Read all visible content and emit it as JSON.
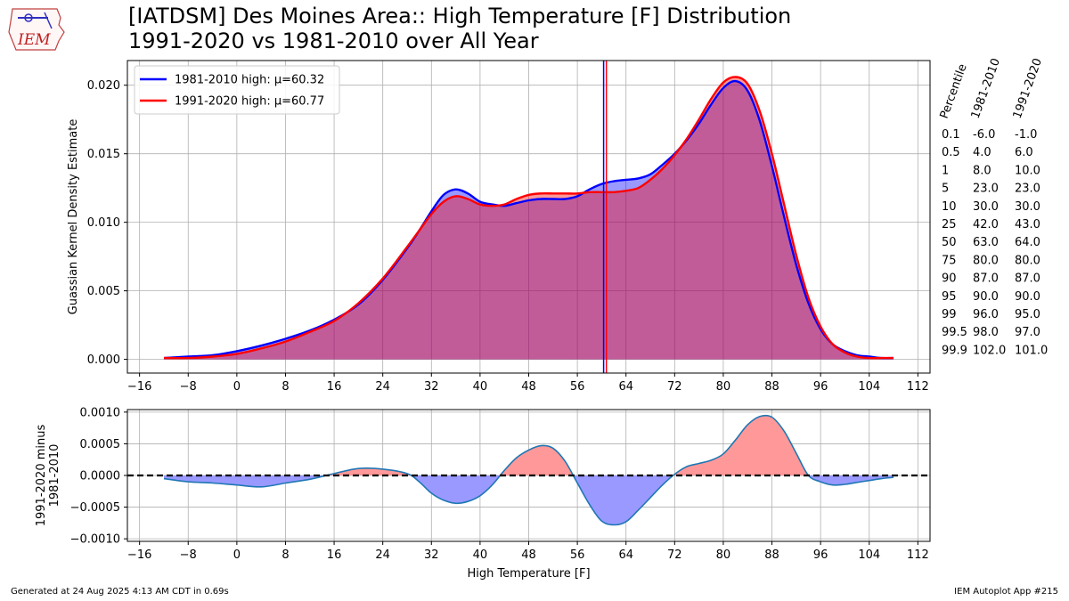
{
  "title": {
    "line1": "[IATDSM] Des Moines Area:: High Temperature [F] Distribution",
    "line2": "1991-2020 vs 1981-2010 over All Year"
  },
  "logo": {
    "text": "IEM",
    "icon": "iowa-state-outline-logo"
  },
  "footer": {
    "left": "Generated at 24 Aug 2025 4:13 AM CDT in 0.69s",
    "right": "IEM Autoplot App #215"
  },
  "chart_data": [
    {
      "type": "area",
      "xlabel": "",
      "ylabel": "Guassian Kernel Density Estimate",
      "xlim": [
        -18,
        114
      ],
      "ylim": [
        -0.001,
        0.0218
      ],
      "xticks": [
        -16,
        -8,
        0,
        8,
        16,
        24,
        32,
        40,
        48,
        56,
        64,
        72,
        80,
        88,
        96,
        104,
        112
      ],
      "yticks": [
        0.0,
        0.005,
        0.01,
        0.015,
        0.02
      ],
      "ytick_labels": [
        "0.000",
        "0.005",
        "0.010",
        "0.015",
        "0.020"
      ],
      "grid": true,
      "legend": "upper-left",
      "x": [
        -12,
        -8,
        -4,
        0,
        4,
        8,
        12,
        16,
        20,
        24,
        28,
        30,
        32,
        34,
        36,
        38,
        40,
        42,
        44,
        46,
        48,
        50,
        52,
        54,
        56,
        58,
        60,
        62,
        64,
        66,
        68,
        70,
        72,
        74,
        76,
        78,
        80,
        82,
        84,
        86,
        88,
        90,
        92,
        94,
        96,
        98,
        100,
        102,
        104,
        106,
        108
      ],
      "series": [
        {
          "name": "1981-2010 high: μ=60.32",
          "color": "#0000ff",
          "mean": 60.32,
          "values": [
            0.0001,
            0.0002,
            0.0003,
            0.0006,
            0.001,
            0.0015,
            0.0021,
            0.0029,
            0.004,
            0.0058,
            0.0081,
            0.0094,
            0.0108,
            0.012,
            0.0124,
            0.0121,
            0.0115,
            0.0113,
            0.0112,
            0.0114,
            0.0116,
            0.0117,
            0.0117,
            0.0117,
            0.0119,
            0.0124,
            0.0128,
            0.013,
            0.0131,
            0.0132,
            0.0135,
            0.0142,
            0.015,
            0.016,
            0.0172,
            0.0186,
            0.0198,
            0.0203,
            0.0196,
            0.0174,
            0.0141,
            0.0104,
            0.0069,
            0.0041,
            0.0022,
            0.0011,
            0.0006,
            0.0003,
            0.0002,
            0.0001,
            0.0001
          ]
        },
        {
          "name": "1991-2020 high: μ=60.77",
          "color": "#ff0000",
          "mean": 60.77,
          "values": [
            0.0001,
            0.0001,
            0.0002,
            0.0004,
            0.0008,
            0.0013,
            0.002,
            0.0028,
            0.0041,
            0.0059,
            0.0082,
            0.0094,
            0.0106,
            0.0115,
            0.0119,
            0.0117,
            0.0113,
            0.0112,
            0.0113,
            0.0117,
            0.012,
            0.0121,
            0.0121,
            0.0121,
            0.0121,
            0.0122,
            0.0122,
            0.0122,
            0.0123,
            0.0125,
            0.0131,
            0.0139,
            0.0149,
            0.0161,
            0.0175,
            0.019,
            0.0202,
            0.0206,
            0.0201,
            0.0181,
            0.015,
            0.0113,
            0.0076,
            0.0045,
            0.0024,
            0.0011,
            0.0005,
            0.0002,
            0.0001,
            0.0001,
            0.0001
          ]
        }
      ]
    },
    {
      "type": "area",
      "xlabel": "High Temperature [F]",
      "ylabel": "1991-2020 minus\n1981-2010",
      "xlim": [
        -18,
        114
      ],
      "ylim": [
        -0.00104,
        0.00104
      ],
      "xticks": [
        -16,
        -8,
        0,
        8,
        16,
        24,
        32,
        40,
        48,
        56,
        64,
        72,
        80,
        88,
        96,
        104,
        112
      ],
      "yticks": [
        -0.001,
        -0.0005,
        0.0,
        0.0005,
        0.001
      ],
      "ytick_labels": [
        "−0.0010",
        "−0.0005",
        "0.0000",
        "0.0005",
        "0.0010"
      ],
      "grid": true,
      "positive_color": "#ff9999",
      "negative_color": "#9999ff",
      "line_color": "#1f77b4",
      "x": [
        -12,
        -8,
        -4,
        0,
        4,
        8,
        12,
        16,
        20,
        24,
        28,
        30,
        32,
        34,
        36,
        38,
        40,
        42,
        44,
        46,
        48,
        50,
        52,
        54,
        56,
        58,
        60,
        62,
        64,
        66,
        68,
        70,
        72,
        74,
        76,
        78,
        80,
        82,
        84,
        86,
        88,
        90,
        92,
        94,
        96,
        98,
        100,
        102,
        104,
        106,
        108
      ],
      "values": [
        -5e-05,
        -0.0001,
        -0.00012,
        -0.00015,
        -0.00018,
        -0.00012,
        -6e-05,
        3e-05,
        0.00011,
        0.0001,
        3e-05,
        -0.0001,
        -0.00028,
        -0.00039,
        -0.00044,
        -0.00041,
        -0.00032,
        -0.00015,
        8e-05,
        0.00028,
        0.0004,
        0.00047,
        0.00043,
        0.00022,
        -0.00012,
        -0.00046,
        -0.00072,
        -0.00078,
        -0.00073,
        -0.00055,
        -0.00035,
        -0.00015,
        2e-05,
        0.00014,
        0.00019,
        0.00024,
        0.00034,
        0.00056,
        0.0008,
        0.00093,
        0.00092,
        0.0007,
        0.00035,
        0.0,
        -0.0001,
        -0.00015,
        -0.00014,
        -0.00011,
        -8e-05,
        -5e-05,
        -3e-05
      ]
    }
  ],
  "percentile_table": {
    "headers": [
      "Percentile",
      "1981-2010",
      "1991-2020"
    ],
    "rows": [
      [
        "0.1",
        "-6.0",
        "-1.0"
      ],
      [
        "0.5",
        "4.0",
        "6.0"
      ],
      [
        "1",
        "8.0",
        "10.0"
      ],
      [
        "5",
        "23.0",
        "23.0"
      ],
      [
        "10",
        "30.0",
        "30.0"
      ],
      [
        "25",
        "42.0",
        "43.0"
      ],
      [
        "50",
        "63.0",
        "64.0"
      ],
      [
        "75",
        "80.0",
        "80.0"
      ],
      [
        "90",
        "87.0",
        "87.0"
      ],
      [
        "95",
        "90.0",
        "90.0"
      ],
      [
        "99",
        "96.0",
        "95.0"
      ],
      [
        "99.5",
        "98.0",
        "97.0"
      ],
      [
        "99.9",
        "102.0",
        "101.0"
      ]
    ]
  }
}
